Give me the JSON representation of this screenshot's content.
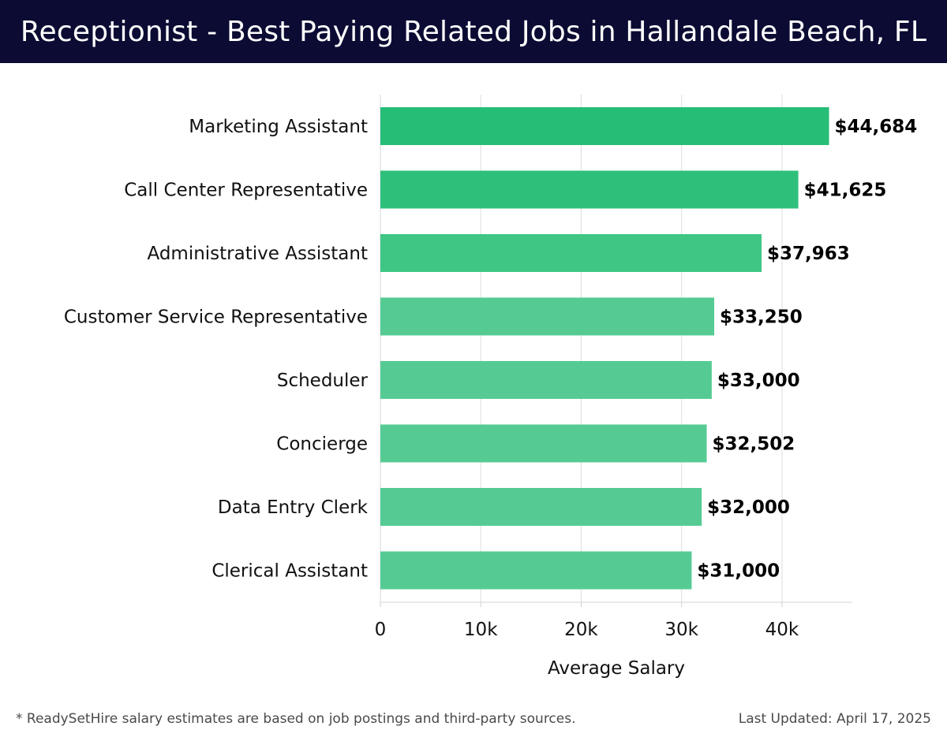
{
  "header": {
    "title": "Receptionist - Best Paying Related Jobs in Hallandale Beach, FL"
  },
  "footer": {
    "note": "* ReadySetHire salary estimates are based on job postings and third-party sources.",
    "updated": "Last Updated: April 17, 2025"
  },
  "colors": {
    "header_bg": "#0b0b33",
    "bar_top": "#26bd76",
    "bar_mid": "#3fc684",
    "bar_low": "#55cb93",
    "grid": "#dddddd",
    "label": "#111111"
  },
  "chart_data": {
    "type": "bar",
    "orientation": "horizontal",
    "categories": [
      "Marketing Assistant",
      "Call Center Representative",
      "Administrative Assistant",
      "Customer Service Representative",
      "Scheduler",
      "Concierge",
      "Data Entry Clerk",
      "Clerical Assistant"
    ],
    "values": [
      44684,
      41625,
      37963,
      33250,
      33000,
      32502,
      32000,
      31000
    ],
    "value_labels": [
      "$44,684",
      "$41,625",
      "$37,963",
      "$33,250",
      "$33,000",
      "$32,502",
      "$32,000",
      "$31,000"
    ],
    "xlabel": "Average Salary",
    "ylabel": "",
    "xlim": [
      0,
      47000
    ],
    "xticks": [
      0,
      10000,
      20000,
      30000,
      40000
    ],
    "xtick_labels": [
      "0",
      "10k",
      "20k",
      "30k",
      "40k"
    ],
    "grid": "vertical"
  }
}
